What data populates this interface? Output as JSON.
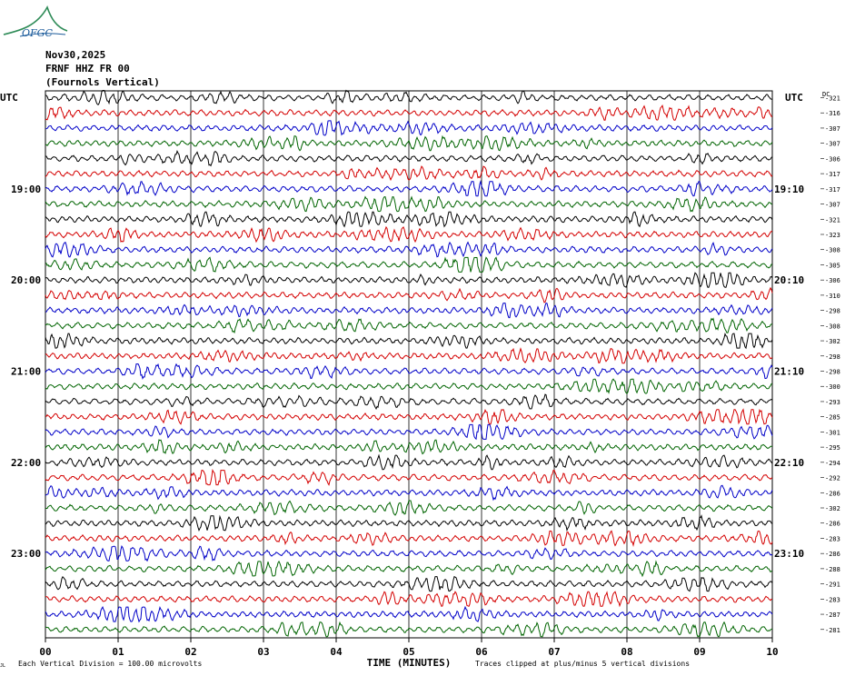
{
  "header": {
    "logo_text": "OFGC",
    "date": "Nov30,2025",
    "station": "FRNF HHZ FR 00",
    "location": "(Fournols Vertical)"
  },
  "colors": {
    "traces": [
      "#000000",
      "#d40000",
      "#0000c8",
      "#006400"
    ],
    "grid": "#000000",
    "logo": "#2e8b57"
  },
  "chart_data": {
    "type": "line",
    "title": "",
    "xlabel": "TIME (MINUTES)",
    "ylabel": "",
    "xlim": [
      0,
      10
    ],
    "x_ticks": [
      "00",
      "01",
      "02",
      "03",
      "04",
      "05",
      "06",
      "07",
      "08",
      "09",
      "10"
    ],
    "left_axis_title": "UTC",
    "right_axis_title": "UTC",
    "right_value_header": "DC",
    "grid": true,
    "rows": 36,
    "left_labels": [
      {
        "row": 6,
        "text": "19:00"
      },
      {
        "row": 12,
        "text": "20:00"
      },
      {
        "row": 18,
        "text": "21:00"
      },
      {
        "row": 24,
        "text": "22:00"
      },
      {
        "row": 30,
        "text": "23:00"
      }
    ],
    "right_labels": [
      {
        "row": 6,
        "text": "19:10"
      },
      {
        "row": 12,
        "text": "20:10"
      },
      {
        "row": 18,
        "text": "21:10"
      },
      {
        "row": 24,
        "text": "22:10"
      },
      {
        "row": 30,
        "text": "23:10"
      }
    ],
    "dc_offsets": [
      "-321",
      "-316",
      "-307",
      "-307",
      "-306",
      "-317",
      "-317",
      "-307",
      "-321",
      "-323",
      "-308",
      "-305",
      "-306",
      "-310",
      "-298",
      "-308",
      "-302",
      "-298",
      "-298",
      "-300",
      "-293",
      "-285",
      "-301",
      "-295",
      "-294",
      "-292",
      "-286",
      "-302",
      "-286",
      "-283",
      "-286",
      "-288",
      "-291",
      "-283",
      "-287",
      "-281"
    ],
    "footer_left": "Each Vertical Division =  100.00 microvolts",
    "footer_right": "Traces clipped at plus/minus 5 vertical divisions",
    "footer_mark": "JL"
  }
}
